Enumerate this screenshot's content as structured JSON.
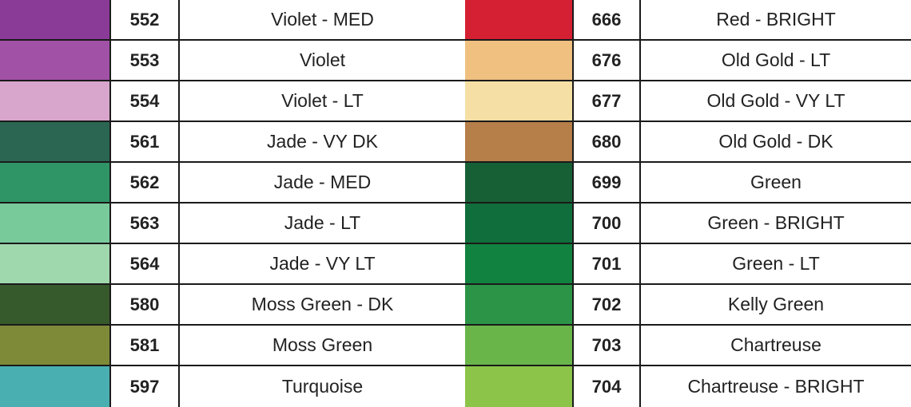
{
  "left_column": [
    {
      "number": "552",
      "name": "Violet - MED",
      "color": "#8a3b98"
    },
    {
      "number": "553",
      "name": "Violet",
      "color": "#a152a6"
    },
    {
      "number": "554",
      "name": "Violet - LT",
      "color": "#d8a5cc"
    },
    {
      "number": "561",
      "name": "Jade - VY DK",
      "color": "#2a6652"
    },
    {
      "number": "562",
      "name": "Jade - MED",
      "color": "#2f9566"
    },
    {
      "number": "563",
      "name": "Jade - LT",
      "color": "#78ca9b"
    },
    {
      "number": "564",
      "name": "Jade - VY LT",
      "color": "#9fd8ad"
    },
    {
      "number": "580",
      "name": "Moss Green - DK",
      "color": "#365a2c"
    },
    {
      "number": "581",
      "name": "Moss Green",
      "color": "#7f8a38"
    },
    {
      "number": "597",
      "name": "Turquoise",
      "color": "#4aafb0"
    }
  ],
  "right_column": [
    {
      "number": "666",
      "name": "Red - BRIGHT",
      "color": "#d52033"
    },
    {
      "number": "676",
      "name": "Old Gold - LT",
      "color": "#efc07f"
    },
    {
      "number": "677",
      "name": "Old Gold - VY LT",
      "color": "#f5dfa4"
    },
    {
      "number": "680",
      "name": "Old Gold - DK",
      "color": "#b67e49"
    },
    {
      "number": "699",
      "name": "Green",
      "color": "#176035"
    },
    {
      "number": "700",
      "name": "Green - BRIGHT",
      "color": "#0f6e3b"
    },
    {
      "number": "701",
      "name": "Green - LT",
      "color": "#11823f"
    },
    {
      "number": "702",
      "name": "Kelly Green",
      "color": "#2b9447"
    },
    {
      "number": "703",
      "name": "Chartreuse",
      "color": "#69b54a"
    },
    {
      "number": "704",
      "name": "Chartreuse - BRIGHT",
      "color": "#8cc449"
    }
  ]
}
